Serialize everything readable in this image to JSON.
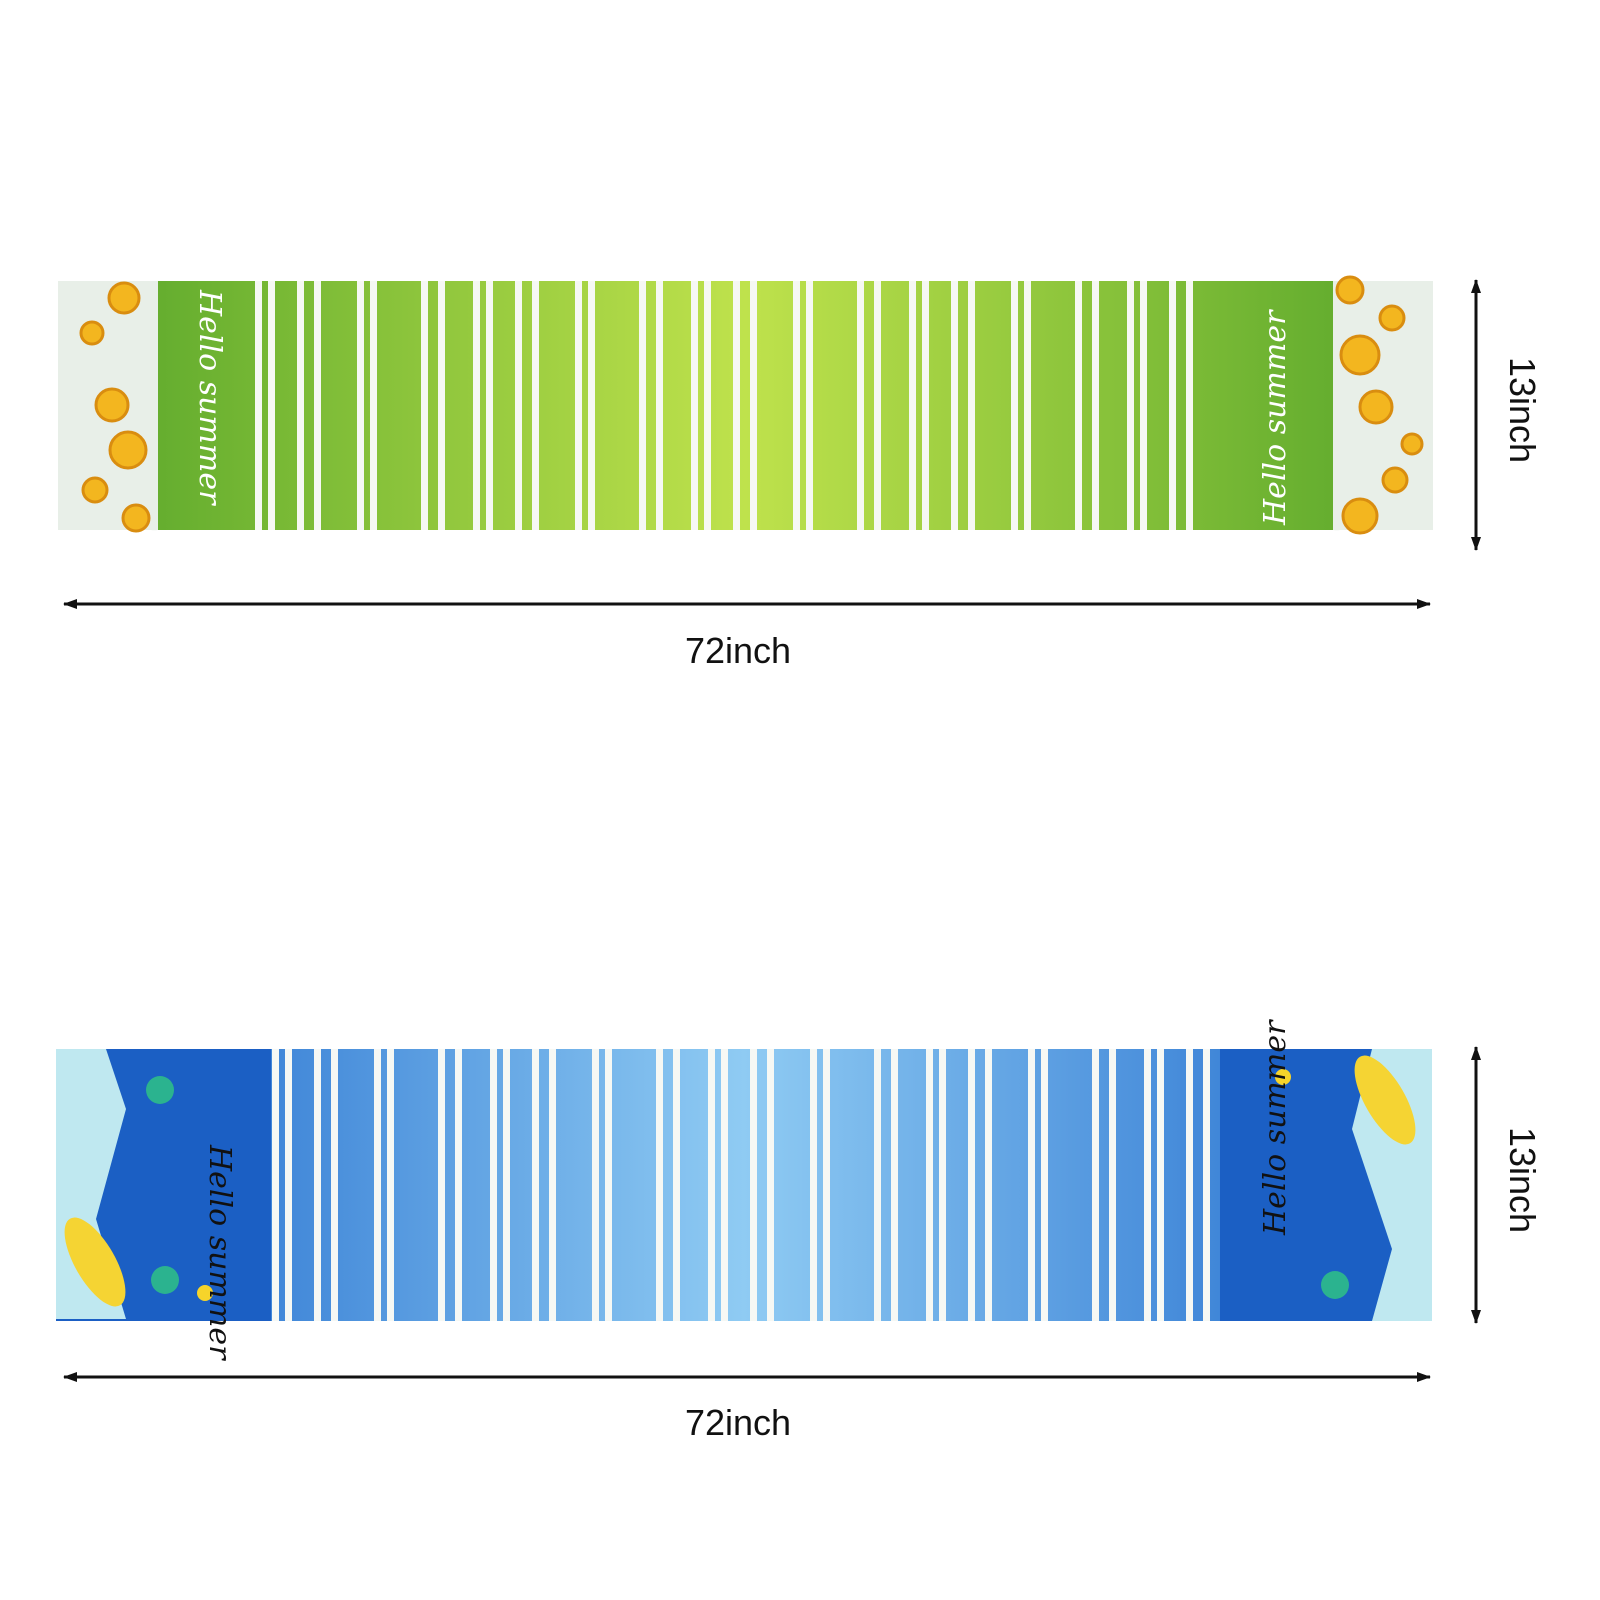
{
  "runners": [
    {
      "left_text": "Hello summer",
      "right_text": "Hello summer",
      "width_label": "72inch",
      "height_label": "13inch"
    },
    {
      "left_text": "Hello summer",
      "right_text": "Hello summer",
      "width_label": "72inch",
      "height_label": "13inch"
    }
  ]
}
